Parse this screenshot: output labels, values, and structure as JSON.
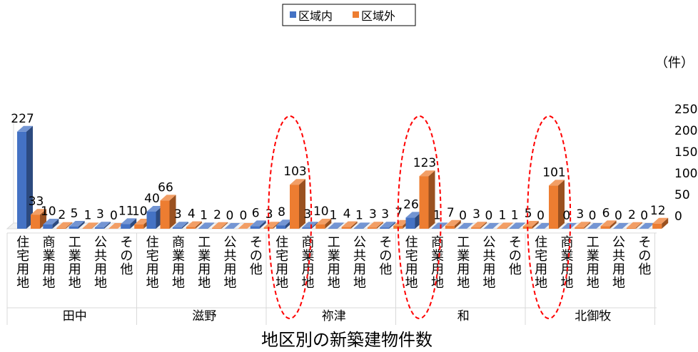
{
  "chart_data": {
    "type": "bar",
    "title": "地区別の新築建物件数",
    "unit_label": "（件）",
    "ylim": [
      0,
      250
    ],
    "yticks": [
      0,
      50,
      100,
      150,
      200,
      250
    ],
    "grid": false,
    "legend_position": "top-center",
    "categories": [
      "住宅用地",
      "商業用地",
      "工業用地",
      "公共用地",
      "その他"
    ],
    "groups": [
      "田中",
      "滋野",
      "祢津",
      "和",
      "北御牧"
    ],
    "series": [
      {
        "name": "区域内",
        "color": "#4472C4",
        "values": [
          [
            227,
            10,
            5,
            3,
            11
          ],
          [
            40,
            3,
            1,
            0,
            6
          ],
          [
            8,
            3,
            1,
            1,
            3
          ],
          [
            26,
            1,
            0,
            0,
            1
          ],
          [
            0,
            0,
            0,
            0,
            0
          ]
        ]
      },
      {
        "name": "区域外",
        "color": "#ED7D31",
        "values": [
          [
            33,
            2,
            1,
            0,
            10
          ],
          [
            66,
            4,
            2,
            0,
            3
          ],
          [
            103,
            10,
            4,
            3,
            7
          ],
          [
            123,
            7,
            3,
            1,
            5
          ],
          [
            101,
            3,
            6,
            2,
            12
          ]
        ]
      }
    ],
    "highlighted_groups": [
      "祢津",
      "和",
      "北御牧"
    ]
  }
}
